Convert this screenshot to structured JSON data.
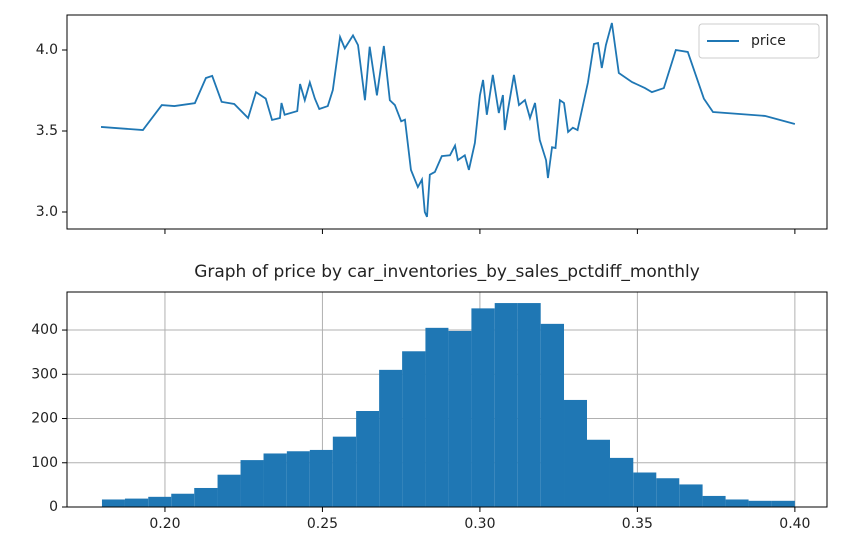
{
  "charts": [
    {
      "type": "line",
      "legend": "upper right",
      "grid": false,
      "xlim": [
        0.1689,
        0.4102
      ],
      "ylim": [
        2.895,
        4.216
      ],
      "yticks": [
        {
          "value": 3,
          "label": "3.0"
        },
        3.5,
        {
          "value": 4,
          "label": "4.0"
        }
      ],
      "x": [
        0.1797,
        0.193,
        0.199,
        0.203,
        0.2095,
        0.213,
        0.215,
        0.218,
        0.222,
        0.2264,
        0.2289,
        0.232,
        0.234,
        0.2365,
        0.237,
        0.238,
        0.242,
        0.2429,
        0.2444,
        0.246,
        0.2476,
        0.249,
        0.2517,
        0.2533,
        0.2556,
        0.2571,
        0.2597,
        0.2613,
        0.2635,
        0.265,
        0.2673,
        0.2695,
        0.2714,
        0.273,
        0.275,
        0.2762,
        0.2781,
        0.2803,
        0.2816,
        0.2825,
        0.2832,
        0.2841,
        0.2857,
        0.2879,
        0.2905,
        0.2921,
        0.293,
        0.2952,
        0.2965,
        0.2984,
        0.3,
        0.301,
        0.3022,
        0.3041,
        0.306,
        0.3073,
        0.3079,
        0.3089,
        0.3108,
        0.3124,
        0.3143,
        0.3159,
        0.3175,
        0.319,
        0.321,
        0.3216,
        0.3229,
        0.324,
        0.3254,
        0.3267,
        0.328,
        0.3295,
        0.331,
        0.3343,
        0.3362,
        0.3375,
        0.3387,
        0.34,
        0.3419,
        0.3441,
        0.3483,
        0.3524,
        0.3546,
        0.3584,
        0.3622,
        0.366,
        0.3711,
        0.374,
        0.3905,
        0.4
      ],
      "series": [
        {
          "name": "price",
          "color": "#1f77b4",
          "values": [
            3.525,
            3.506,
            3.66,
            3.654,
            3.672,
            3.827,
            3.84,
            3.68,
            3.667,
            3.58,
            3.74,
            3.7,
            3.568,
            3.58,
            3.673,
            3.6,
            3.623,
            3.79,
            3.69,
            3.8,
            3.7,
            3.636,
            3.654,
            3.753,
            4.08,
            4.01,
            4.09,
            4.03,
            3.69,
            4.02,
            3.72,
            4.025,
            3.69,
            3.66,
            3.56,
            3.57,
            3.26,
            3.154,
            3.2,
            3.0,
            2.97,
            3.23,
            3.247,
            3.345,
            3.35,
            3.41,
            3.32,
            3.35,
            3.26,
            3.426,
            3.72,
            3.815,
            3.6,
            3.846,
            3.611,
            3.722,
            3.506,
            3.63,
            3.846,
            3.66,
            3.691,
            3.58,
            3.673,
            3.444,
            3.32,
            3.21,
            3.4,
            3.395,
            3.69,
            3.673,
            3.494,
            3.52,
            3.506,
            3.8,
            4.037,
            4.043,
            3.889,
            4.03,
            4.167,
            3.858,
            3.802,
            3.765,
            3.74,
            3.765,
            4.0,
            3.988,
            3.7,
            3.617,
            3.593,
            3.543
          ]
        }
      ]
    },
    {
      "type": "histogram",
      "title": "Graph of price by car_inventories_by_sales_pctdiff_monthly",
      "color": "#1f77b4",
      "grid": true,
      "xlim": [
        0.1689,
        0.4102
      ],
      "ylim": [
        0,
        486
      ],
      "xticks": [
        {
          "value": 0.2,
          "label": "0.20"
        },
        0.25,
        {
          "value": 0.3,
          "label": "0.30"
        },
        0.35,
        {
          "value": 0.4,
          "label": "0.40"
        }
      ],
      "yticks": [
        0,
        100,
        200,
        300,
        400
      ],
      "bins": [
        0.18,
        0.1873,
        0.1947,
        0.202,
        0.2093,
        0.2167,
        0.224,
        0.2313,
        0.2387,
        0.246,
        0.2533,
        0.2607,
        0.268,
        0.2753,
        0.2827,
        0.29,
        0.2973,
        0.3047,
        0.312,
        0.3193,
        0.3267,
        0.334,
        0.3413,
        0.3487,
        0.356,
        0.3633,
        0.3707,
        0.378,
        0.3853,
        0.3927,
        0.4
      ],
      "values": [
        17,
        19,
        23,
        30,
        43,
        73,
        106,
        121,
        126,
        129,
        159,
        217,
        310,
        352,
        405,
        398,
        449,
        461,
        461,
        414,
        242,
        152,
        111,
        78,
        65,
        51,
        25,
        17,
        14,
        14
      ]
    }
  ]
}
